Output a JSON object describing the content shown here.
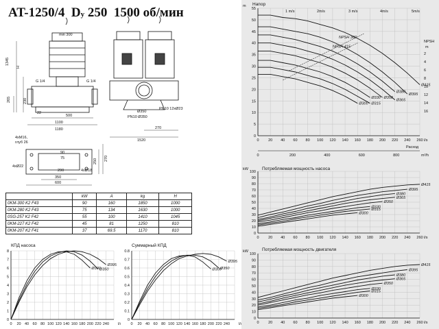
{
  "title": {
    "model": "AT-1250/4",
    "d": "D",
    "sub": "y",
    "dn": "250",
    "speed": "1500 об/мин"
  },
  "drawing": {
    "dims": {
      "min300": "min 300",
      "h1345": "1345",
      "h": "H",
      "g14a": "G 1/4",
      "g14b": "G 1/4",
      "v265": "265",
      "v230": "230",
      "d22": "22",
      "d500": "500",
      "d1100": "1100",
      "d1180": "1180",
      "holes": "4xM16,",
      "depth": "глуб 26",
      "pn10a": "PN10 12xØ23",
      "d350": "Ø350",
      "pn10b": "PN10 Ø350",
      "d270": "270",
      "d1520": "1520",
      "p90": "90",
      "p75": "75",
      "p4x22": "4xØ22",
      "p290": "290",
      "p4x18": "4xØ18",
      "p350": "350",
      "p600": "600",
      "p250": "250",
      "p270": "270"
    }
  },
  "spec_table": {
    "headers": [
      "",
      "kW",
      "A",
      "kg",
      "H"
    ],
    "rows": [
      [
        "0KM-300 K2 F43",
        "90",
        "160",
        "1850",
        "1000"
      ],
      [
        "0KM-280 K2 F43",
        "75",
        "134",
        "1630",
        "1000"
      ],
      [
        "0SG-257 K2 F42",
        "55",
        "100",
        "1410",
        "1045"
      ],
      [
        "0KM-227 K2 F42",
        "45",
        "81",
        "1250",
        "810"
      ],
      [
        "0KM-207 K2 F41",
        "37",
        "69.5",
        "1170",
        "810"
      ]
    ]
  },
  "chart_data": [
    {
      "type": "line",
      "title": "КПД насоса",
      "x": [
        0,
        20,
        40,
        60,
        80,
        100,
        120,
        140,
        160,
        180,
        200,
        220,
        240
      ],
      "xlabel": "l/s",
      "xlim": [
        0,
        260
      ],
      "ylim": [
        0,
        0.8
      ],
      "yticks": [
        0,
        0.1,
        0.2,
        0.3,
        0.4,
        0.5,
        0.6,
        0.7,
        0.8
      ],
      "yticklabels": [
        "0",
        "1",
        "2",
        "3",
        "4",
        "5",
        "6",
        "7",
        "8"
      ],
      "series": [
        {
          "name": "Ø395",
          "values": [
            0,
            0.2,
            0.38,
            0.52,
            0.63,
            0.71,
            0.76,
            0.79,
            0.8,
            0.79,
            0.76,
            0.71,
            0.64
          ]
        },
        {
          "name": "Ø350",
          "values": [
            0,
            0.22,
            0.41,
            0.56,
            0.67,
            0.74,
            0.78,
            0.8,
            0.79,
            0.75,
            0.68,
            0.59,
            null
          ]
        },
        {
          "name": "Ø300",
          "values": [
            0,
            0.25,
            0.45,
            0.6,
            0.7,
            0.76,
            0.79,
            0.79,
            0.76,
            0.69,
            0.6,
            null,
            null
          ]
        }
      ]
    },
    {
      "type": "line",
      "title": "Суммарный КПД",
      "x": [
        0,
        20,
        40,
        60,
        80,
        100,
        120,
        140,
        160,
        180,
        200,
        220,
        240
      ],
      "xlabel": "l/s",
      "xlim": [
        0,
        260
      ],
      "ylim": [
        0,
        0.8
      ],
      "yticks": [
        0,
        0.1,
        0.2,
        0.3,
        0.4,
        0.5,
        0.6,
        0.7,
        0.8
      ],
      "yticklabels": [
        "0",
        "0.1",
        "0.2",
        "0.3",
        "0.4",
        "0.5",
        "0.6",
        "0.7",
        "0.8"
      ],
      "series": [
        {
          "name": "Ø395",
          "values": [
            0,
            0.17,
            0.33,
            0.46,
            0.57,
            0.65,
            0.71,
            0.74,
            0.76,
            0.77,
            0.76,
            0.73,
            0.68
          ]
        },
        {
          "name": "Ø350",
          "values": [
            0,
            0.19,
            0.36,
            0.5,
            0.61,
            0.68,
            0.73,
            0.75,
            0.75,
            0.73,
            0.68,
            0.6,
            null
          ]
        },
        {
          "name": "Ø300",
          "values": [
            0,
            0.21,
            0.4,
            0.54,
            0.64,
            0.71,
            0.74,
            0.75,
            0.73,
            0.67,
            0.59,
            null,
            null
          ]
        }
      ]
    },
    {
      "type": "line",
      "title": "Напор",
      "x": [
        0,
        20,
        40,
        60,
        80,
        100,
        120,
        140,
        160,
        180,
        200,
        220,
        240,
        260
      ],
      "xlabel": "l/s",
      "secondary_xlabel": "m³/h",
      "secondary_xticks": [
        0,
        200,
        400,
        600,
        800
      ],
      "xlim": [
        0,
        260
      ],
      "ylim": [
        0,
        55
      ],
      "yticks": [
        0,
        5,
        10,
        15,
        20,
        25,
        30,
        35,
        40,
        45,
        50,
        55
      ],
      "ylabel": "m",
      "x2label": "Расход",
      "npsh_label": "NPSH",
      "npsh_unit": "m",
      "npsh_ticks": [
        2,
        4,
        6,
        8,
        10,
        12,
        14,
        16
      ],
      "velocity_labels": [
        "1 m/s",
        "2m/s",
        "3 m/s",
        "4m/s",
        "5m/s"
      ],
      "npsh_series": [
        "NPSH 415",
        "NPSH 360"
      ],
      "series": [
        {
          "name": "Ø415",
          "values": [
            52,
            52,
            51,
            50.5,
            49.5,
            48,
            46.5,
            44.5,
            42,
            39,
            35.5,
            31.5,
            27,
            22
          ]
        },
        {
          "name": "Ø395",
          "values": [
            47,
            47,
            46,
            45,
            44,
            42.5,
            40.5,
            38,
            35,
            31.5,
            27.5,
            23,
            18,
            null
          ]
        },
        {
          "name": "Ø380",
          "values": [
            43.5,
            43.5,
            42.5,
            41.5,
            40,
            38.5,
            36.5,
            34,
            31,
            27.5,
            23.5,
            19,
            null,
            null
          ]
        },
        {
          "name": "Ø365",
          "values": [
            40,
            40,
            39,
            38,
            36.5,
            35,
            33,
            30.5,
            27.5,
            24,
            20,
            15.5,
            null,
            null
          ]
        },
        {
          "name": "Ø350",
          "values": [
            36.5,
            36.5,
            35.5,
            34.5,
            33,
            31.5,
            29.5,
            27,
            24,
            20.5,
            16.5,
            null,
            null,
            null
          ]
        },
        {
          "name": "Ø330",
          "values": [
            32.5,
            32.5,
            31.5,
            30.5,
            29,
            27.5,
            25.5,
            23,
            20,
            16.5,
            null,
            null,
            null,
            null
          ]
        },
        {
          "name": "Ø315",
          "values": [
            29.5,
            29.5,
            28.5,
            27.5,
            26,
            24.5,
            22.5,
            20,
            17,
            14,
            null,
            null,
            null,
            null
          ]
        },
        {
          "name": "Ø300",
          "values": [
            26.5,
            26.5,
            25.5,
            24.5,
            23,
            21.5,
            19.5,
            17,
            14,
            null,
            null,
            null,
            null,
            null
          ]
        }
      ]
    },
    {
      "type": "line",
      "title": "Потребляемая мощность насоса",
      "x": [
        0,
        20,
        40,
        60,
        80,
        100,
        120,
        140,
        160,
        180,
        200,
        220,
        240,
        260
      ],
      "xlabel": "l/s",
      "ylabel": "kW",
      "xlim": [
        0,
        260
      ],
      "ylim": [
        0,
        100
      ],
      "yticks": [
        0,
        10,
        20,
        30,
        40,
        50,
        60,
        70,
        80,
        90,
        100
      ],
      "series": [
        {
          "name": "Ø415",
          "values": [
            29,
            34,
            39,
            44,
            49,
            54,
            59,
            63,
            67,
            71,
            74,
            76,
            78,
            79
          ]
        },
        {
          "name": "Ø395",
          "values": [
            25,
            30,
            34,
            39,
            44,
            48,
            53,
            57,
            61,
            64,
            67,
            69,
            71,
            null
          ]
        },
        {
          "name": "Ø380",
          "values": [
            22,
            26,
            31,
            35,
            40,
            44,
            48,
            52,
            56,
            59,
            62,
            64,
            null,
            null
          ]
        },
        {
          "name": "Ø365",
          "values": [
            20,
            24,
            28,
            32,
            36,
            40,
            44,
            48,
            51,
            54,
            56,
            58,
            null,
            null
          ]
        },
        {
          "name": "Ø350",
          "values": [
            18,
            21,
            25,
            29,
            33,
            36,
            40,
            43,
            46,
            49,
            51,
            null,
            null,
            null
          ]
        },
        {
          "name": "Ø330",
          "values": [
            15,
            18,
            22,
            25,
            29,
            32,
            35,
            38,
            41,
            43,
            null,
            null,
            null,
            null
          ]
        },
        {
          "name": "Ø315",
          "values": [
            13,
            16,
            19,
            23,
            26,
            29,
            32,
            35,
            37,
            39,
            null,
            null,
            null,
            null
          ]
        },
        {
          "name": "Ø300",
          "values": [
            11,
            14,
            17,
            20,
            23,
            26,
            29,
            31,
            33,
            null,
            null,
            null,
            null,
            null
          ]
        }
      ]
    },
    {
      "type": "line",
      "title": "Потребляемая мощность двигателя",
      "x": [
        0,
        20,
        40,
        60,
        80,
        100,
        120,
        140,
        160,
        180,
        200,
        220,
        240,
        260
      ],
      "xlabel": "l/s",
      "ylabel": "kW",
      "xlim": [
        0,
        260
      ],
      "ylim": [
        0,
        100
      ],
      "yticks": [
        0,
        10,
        20,
        30,
        40,
        50,
        60,
        70,
        80,
        90,
        100
      ],
      "series": [
        {
          "name": "Ø415",
          "values": [
            32,
            37,
            42,
            47,
            52,
            57,
            62,
            66,
            70,
            74,
            77,
            80,
            82,
            83
          ]
        },
        {
          "name": "Ø395",
          "values": [
            28,
            32,
            37,
            42,
            47,
            51,
            56,
            60,
            64,
            67,
            70,
            73,
            75,
            null
          ]
        },
        {
          "name": "Ø380",
          "values": [
            25,
            29,
            34,
            38,
            43,
            47,
            51,
            55,
            59,
            62,
            65,
            67,
            null,
            null
          ]
        },
        {
          "name": "Ø365",
          "values": [
            22,
            26,
            31,
            35,
            39,
            43,
            47,
            51,
            54,
            57,
            59,
            61,
            null,
            null
          ]
        },
        {
          "name": "Ø350",
          "values": [
            20,
            24,
            28,
            32,
            36,
            39,
            43,
            46,
            49,
            52,
            54,
            null,
            null,
            null
          ]
        },
        {
          "name": "Ø330",
          "values": [
            17,
            20,
            24,
            28,
            31,
            35,
            38,
            41,
            44,
            46,
            null,
            null,
            null,
            null
          ]
        },
        {
          "name": "Ø315",
          "values": [
            15,
            18,
            21,
            25,
            28,
            31,
            34,
            37,
            40,
            42,
            null,
            null,
            null,
            null
          ]
        },
        {
          "name": "Ø300",
          "values": [
            13,
            16,
            19,
            22,
            25,
            28,
            31,
            33,
            35,
            null,
            null,
            null,
            null,
            null
          ]
        }
      ]
    }
  ]
}
